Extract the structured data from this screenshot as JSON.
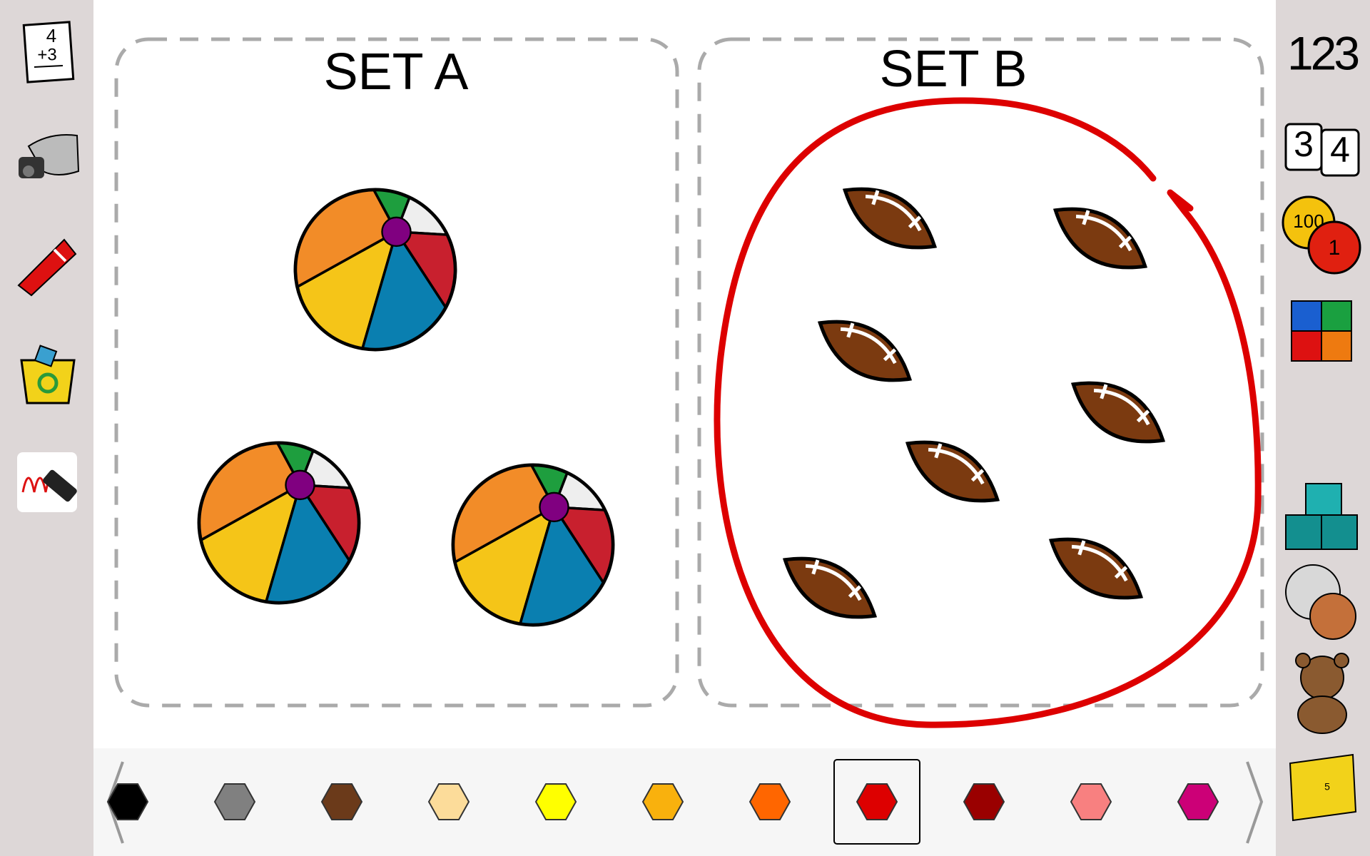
{
  "workspace": {
    "set_a": {
      "title": "SET A"
    },
    "set_b": {
      "title": "SET B"
    }
  },
  "left_toolbar": {
    "flashcard": {
      "top": "4",
      "bottom": "+3"
    }
  },
  "right_toolbar": {
    "numbers": "123",
    "number_cards": [
      "3",
      "4"
    ],
    "coins": [
      "100",
      "1"
    ],
    "ruler": "5"
  },
  "palette": {
    "colors": [
      "#000000",
      "#808080",
      "#6b3a1a",
      "#fcdc9a",
      "#ffff00",
      "#f9b10d",
      "#ff6600",
      "#dd0000",
      "#9a0000",
      "#f88080",
      "#cc0077"
    ],
    "selected": "#dd0000"
  }
}
